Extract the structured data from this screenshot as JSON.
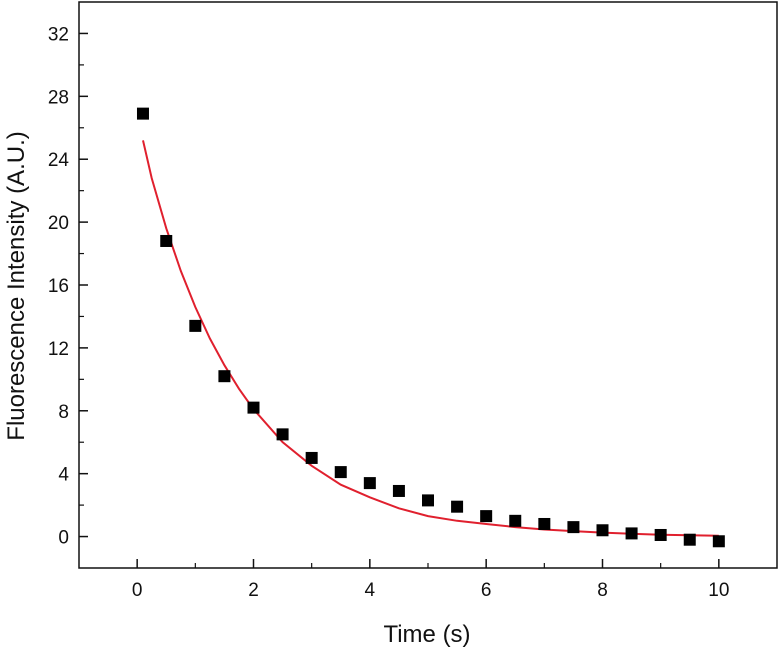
{
  "chart_data": {
    "type": "scatter",
    "title": "",
    "xlabel": "Time (s)",
    "ylabel": "Fluorescence Intensity (A.U.)",
    "xlim": [
      -1,
      11
    ],
    "ylim": [
      -2,
      34
    ],
    "x_ticks": [
      "0",
      "2",
      "4",
      "6",
      "8",
      "10"
    ],
    "y_ticks": [
      "0",
      "4",
      "8",
      "12",
      "16",
      "20",
      "24",
      "28",
      "32"
    ],
    "grid": false,
    "legend": "none",
    "series": [
      {
        "kind": "points",
        "color": "#000000",
        "x": [
          0.1,
          0.5,
          1.0,
          1.5,
          2.0,
          2.5,
          3.0,
          3.5,
          4.0,
          4.5,
          5.0,
          5.5,
          6.0,
          6.5,
          7.0,
          7.5,
          8.0,
          8.5,
          9.0,
          9.5,
          10.0
        ],
        "y": [
          26.9,
          18.8,
          13.4,
          10.2,
          8.2,
          6.5,
          5.0,
          4.1,
          3.4,
          2.9,
          2.3,
          1.9,
          1.3,
          1.0,
          0.8,
          0.6,
          0.4,
          0.2,
          0.1,
          -0.2,
          -0.3
        ]
      },
      {
        "kind": "fit-line",
        "color": "#e0202e",
        "x": [
          0.1,
          0.25,
          0.5,
          0.75,
          1.0,
          1.25,
          1.5,
          1.75,
          2.0,
          2.5,
          3.0,
          3.5,
          4.0,
          4.5,
          5.0,
          5.5,
          6.0,
          6.5,
          7.0,
          7.5,
          8.0,
          8.5,
          9.0,
          9.5,
          10.0
        ],
        "y": [
          25.2,
          22.8,
          19.6,
          16.9,
          14.6,
          12.6,
          10.9,
          9.4,
          8.1,
          6.0,
          4.5,
          3.3,
          2.5,
          1.8,
          1.3,
          1.0,
          0.8,
          0.6,
          0.45,
          0.35,
          0.25,
          0.18,
          0.12,
          0.08,
          0.05
        ]
      }
    ]
  }
}
